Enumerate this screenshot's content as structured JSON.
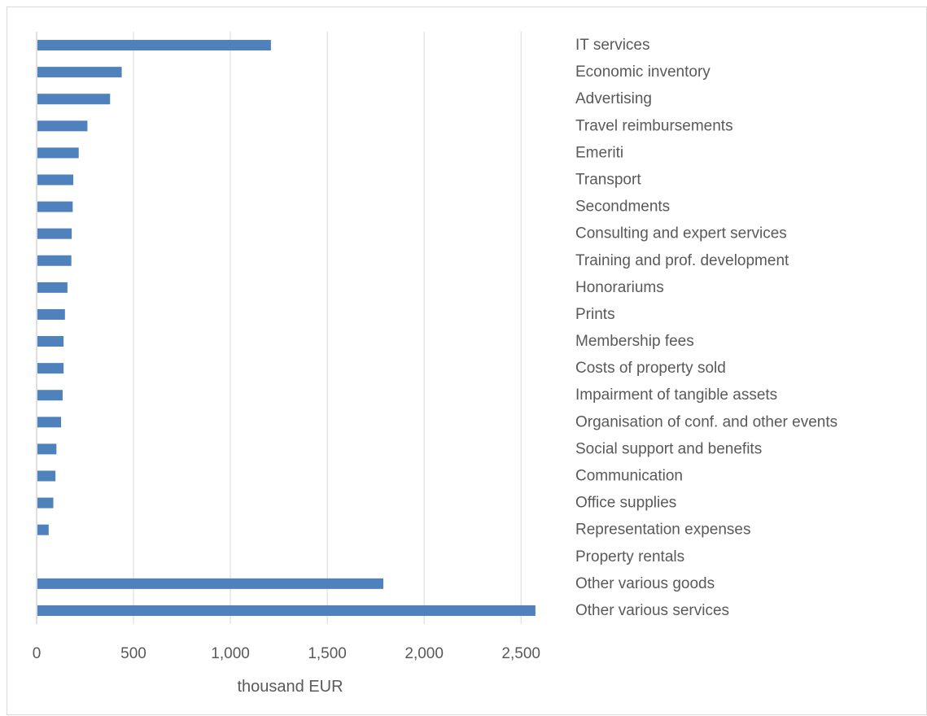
{
  "chart_data": {
    "type": "bar",
    "orientation": "horizontal",
    "categories": [
      "IT services",
      "Economic inventory",
      "Advertising",
      "Travel reimbursements",
      "Emeriti",
      "Transport",
      "Secondments",
      "Consulting and expert services",
      "Training and prof. development",
      "Honorariums",
      "Prints",
      "Membership fees",
      "Costs of property sold",
      "Impairment of tangible assets",
      "Organisation of conf. and other events",
      "Social support and benefits",
      "Communication",
      "Office supplies",
      "Representation expenses",
      "Property rentals",
      "Other various goods",
      "Other various services"
    ],
    "values": [
      1205,
      435,
      375,
      258,
      213,
      185,
      182,
      177,
      175,
      155,
      142,
      135,
      135,
      130,
      122,
      98,
      93,
      82,
      58,
      0,
      1785,
      2570
    ],
    "xlim": [
      0,
      2600
    ],
    "xticks": [
      0,
      500,
      1000,
      1500,
      2000,
      2500
    ],
    "xtick_labels": [
      "0",
      "500",
      "1,000",
      "1,500",
      "2,000",
      "2,500"
    ],
    "xlabel": "thousand EUR",
    "ylabel": "",
    "title": "",
    "grid": "vertical major gridlines",
    "legend": "none",
    "bar_color": "#4f81bd"
  }
}
